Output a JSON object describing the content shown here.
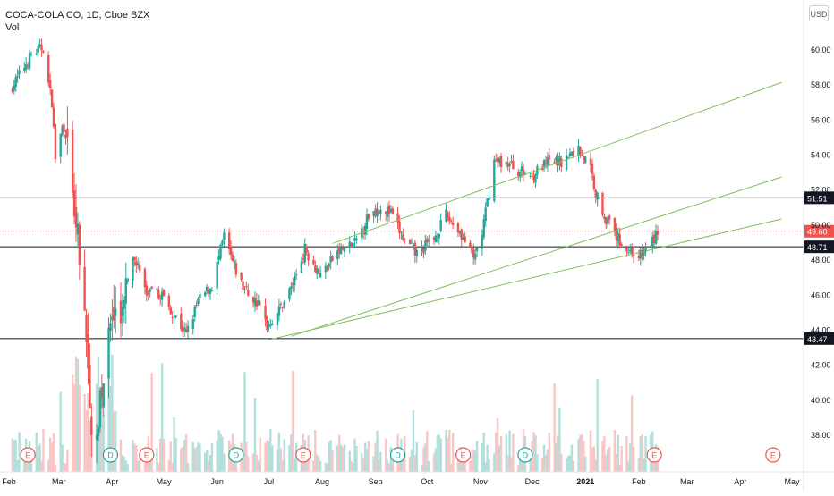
{
  "header": {
    "symbol_line": "COCA-COLA CO, 1D, Cboe BZX",
    "volume_label": "Vol"
  },
  "currency": "USD",
  "chart_data": {
    "type": "candlestick",
    "title": "COCA-COLA CO, 1D, Cboe BZX",
    "ylim": [
      36.5,
      61.5
    ],
    "y_ticks": [
      "38.00",
      "40.00",
      "42.00",
      "44.00",
      "46.00",
      "48.00",
      "50.00",
      "52.00",
      "54.00",
      "56.00",
      "58.00",
      "60.00"
    ],
    "x_labels": [
      "Feb",
      "Mar",
      "Apr",
      "May",
      "Jun",
      "Jul",
      "Aug",
      "Sep",
      "Oct",
      "Nov",
      "Dec",
      "2021",
      "Feb",
      "Mar",
      "Apr",
      "May"
    ],
    "x_range": [
      "2020-02-01",
      "2021-05-15"
    ],
    "x_label_dates": [
      "2020-02-01",
      "2020-03-01",
      "2020-04-01",
      "2020-05-01",
      "2020-06-01",
      "2020-07-01",
      "2020-08-01",
      "2020-09-01",
      "2020-10-01",
      "2020-11-01",
      "2020-12-01",
      "2021-01-01",
      "2021-02-01",
      "2021-03-01",
      "2021-04-01",
      "2021-05-01"
    ],
    "close_path": [
      [
        "2020-02-01",
        57.6
      ],
      [
        "2020-02-07",
        58.5
      ],
      [
        "2020-02-14",
        59.7
      ],
      [
        "2020-02-21",
        60.1
      ],
      [
        "2020-02-24",
        58.0
      ],
      [
        "2020-02-26",
        57.0
      ],
      [
        "2020-02-28",
        53.8
      ],
      [
        "2020-03-03",
        55.5
      ],
      [
        "2020-03-06",
        54.2
      ],
      [
        "2020-03-09",
        51.3
      ],
      [
        "2020-03-12",
        49.7
      ],
      [
        "2020-03-16",
        44.5
      ],
      [
        "2020-03-19",
        39.3
      ],
      [
        "2020-03-23",
        37.6
      ],
      [
        "2020-03-26",
        40.6
      ],
      [
        "2020-03-31",
        44.2
      ],
      [
        "2020-04-07",
        45.4
      ],
      [
        "2020-04-14",
        48.2
      ],
      [
        "2020-04-21",
        46.0
      ],
      [
        "2020-04-30",
        46.0
      ],
      [
        "2020-05-06",
        45.0
      ],
      [
        "2020-05-14",
        43.7
      ],
      [
        "2020-05-21",
        45.6
      ],
      [
        "2020-05-29",
        46.5
      ],
      [
        "2020-06-05",
        49.3
      ],
      [
        "2020-06-10",
        47.8
      ],
      [
        "2020-06-16",
        46.4
      ],
      [
        "2020-06-26",
        45.3
      ],
      [
        "2020-06-30",
        44.2
      ],
      [
        "2020-07-07",
        45.1
      ],
      [
        "2020-07-15",
        46.6
      ],
      [
        "2020-07-22",
        48.6
      ],
      [
        "2020-07-31",
        47.1
      ],
      [
        "2020-08-10",
        48.4
      ],
      [
        "2020-08-20",
        48.9
      ],
      [
        "2020-08-28",
        50.5
      ],
      [
        "2020-09-04",
        51.0
      ],
      [
        "2020-09-10",
        50.6
      ],
      [
        "2020-09-18",
        49.0
      ],
      [
        "2020-09-25",
        48.3
      ],
      [
        "2020-10-05",
        49.2
      ],
      [
        "2020-10-12",
        50.5
      ],
      [
        "2020-10-20",
        49.6
      ],
      [
        "2020-10-28",
        48.0
      ],
      [
        "2020-11-02",
        49.5
      ],
      [
        "2020-11-09",
        53.6
      ],
      [
        "2020-11-16",
        53.5
      ],
      [
        "2020-11-24",
        53.0
      ],
      [
        "2020-12-01",
        52.8
      ],
      [
        "2020-12-10",
        53.5
      ],
      [
        "2020-12-18",
        53.6
      ],
      [
        "2020-12-28",
        54.3
      ],
      [
        "2021-01-04",
        53.2
      ],
      [
        "2021-01-07",
        51.8
      ],
      [
        "2021-01-12",
        50.5
      ],
      [
        "2021-01-19",
        49.3
      ],
      [
        "2021-01-26",
        48.5
      ],
      [
        "2021-02-02",
        48.2
      ],
      [
        "2021-02-09",
        49.0
      ],
      [
        "2021-02-12",
        49.6
      ]
    ],
    "trendlines": [
      {
        "from": [
          "2020-08-07",
          48.9
        ],
        "to": [
          "2021-04-25",
          58.1
        ]
      },
      {
        "from": [
          "2020-07-14",
          43.6
        ],
        "to": [
          "2021-04-25",
          52.7
        ]
      },
      {
        "from": [
          "2020-07-01",
          43.4
        ],
        "to": [
          "2021-04-25",
          50.3
        ]
      }
    ],
    "horizontal_lines": [
      {
        "value": 51.51,
        "label": "51.51"
      },
      {
        "value": 48.71,
        "label": "48.71"
      },
      {
        "value": 43.47,
        "label": "43.47"
      }
    ],
    "last_price": {
      "value": 49.6,
      "label": "49.60"
    },
    "event_markers": [
      {
        "date": "2020-02-12",
        "type": "E"
      },
      {
        "date": "2020-03-31",
        "type": "D"
      },
      {
        "date": "2020-04-21",
        "type": "E"
      },
      {
        "date": "2020-06-12",
        "type": "D"
      },
      {
        "date": "2020-07-21",
        "type": "E"
      },
      {
        "date": "2020-09-14",
        "type": "D"
      },
      {
        "date": "2020-10-22",
        "type": "E"
      },
      {
        "date": "2020-11-27",
        "type": "D"
      },
      {
        "date": "2021-02-10",
        "type": "E"
      },
      {
        "date": "2021-04-20",
        "type": "E"
      }
    ],
    "colors": {
      "up": "#26a69a",
      "down": "#ef5350",
      "trendline": "#7fbf5c",
      "hline": "#131722",
      "vol_up": "#b2dfdb",
      "vol_down": "#f8c6c5",
      "event_E": "#ef5350",
      "event_D": "#26a69a"
    }
  }
}
